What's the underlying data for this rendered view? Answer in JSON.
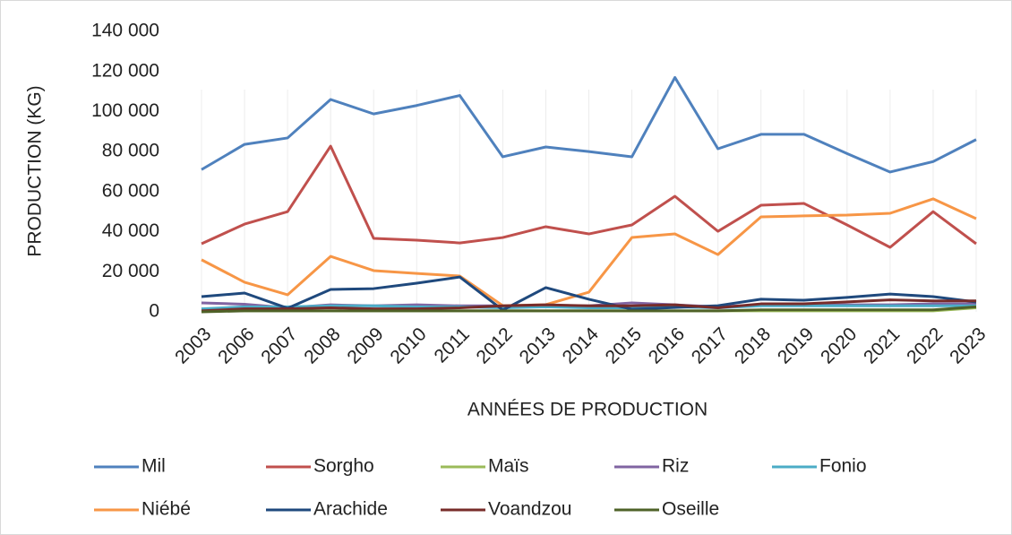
{
  "chart_data": {
    "type": "line",
    "ylabel": "PRODUCTION (KG)",
    "xlabel": "ANNÉES DE PRODUCTION",
    "categories": [
      "2003",
      "2006",
      "2007",
      "2008",
      "2009",
      "2010",
      "2011",
      "2012",
      "2013",
      "2014",
      "2015",
      "2016",
      "2017",
      "2018",
      "2019",
      "2020",
      "2021",
      "2022",
      "2023"
    ],
    "series": [
      {
        "name": "Mil",
        "color": "#4f81bd",
        "values": [
          71000,
          83600,
          86800,
          106000,
          98800,
          103000,
          108000,
          77400,
          82300,
          80000,
          77400,
          117000,
          81400,
          88600,
          88600,
          79000,
          69800,
          75000,
          86000
        ]
      },
      {
        "name": "Sorgho",
        "color": "#c0504d",
        "values": [
          34000,
          43800,
          50000,
          82700,
          36700,
          35800,
          34400,
          37100,
          42500,
          38900,
          43400,
          57700,
          40200,
          53200,
          54100,
          43400,
          32200,
          50000,
          34000
        ]
      },
      {
        "name": "Maïs",
        "color": "#9bbb59",
        "values": [
          500,
          500,
          500,
          500,
          500,
          500,
          500,
          500,
          500,
          500,
          500,
          500,
          500,
          500,
          500,
          500,
          500,
          500,
          2000
        ]
      },
      {
        "name": "Riz",
        "color": "#8064a2",
        "values": [
          4500,
          3800,
          2000,
          3500,
          3000,
          3500,
          3000,
          3000,
          3000,
          3000,
          4500,
          3500,
          2500,
          3500,
          3500,
          3500,
          3500,
          4000,
          4000
        ]
      },
      {
        "name": "Fonio",
        "color": "#4bacc6",
        "values": [
          1500,
          2500,
          2500,
          3000,
          3000,
          2500,
          2500,
          2000,
          2500,
          2000,
          2000,
          2500,
          2000,
          3000,
          3000,
          3000,
          3000,
          3000,
          3000
        ]
      },
      {
        "name": "Niébé",
        "color": "#f79646",
        "values": [
          26000,
          14800,
          8500,
          27700,
          20600,
          19200,
          17900,
          3100,
          3600,
          9800,
          37100,
          38900,
          28600,
          47400,
          47900,
          48300,
          49200,
          56400,
          46500
        ]
      },
      {
        "name": "Arachide",
        "color": "#1f497d",
        "values": [
          7600,
          9400,
          1800,
          11200,
          11600,
          14300,
          17400,
          900,
          12100,
          6300,
          1300,
          2200,
          3100,
          6300,
          5800,
          7200,
          8900,
          7600,
          4900
        ]
      },
      {
        "name": "Voandzou",
        "color": "#772c2a",
        "values": [
          500,
          1500,
          1500,
          2000,
          1500,
          1500,
          2000,
          3000,
          3500,
          3000,
          3000,
          3500,
          2000,
          4000,
          4000,
          5000,
          6000,
          5500,
          5500
        ]
      },
      {
        "name": "Oseille",
        "color": "#4f6228",
        "values": [
          0,
          500,
          500,
          500,
          500,
          500,
          500,
          500,
          500,
          500,
          500,
          500,
          500,
          1000,
          1000,
          1000,
          1000,
          1000,
          2500
        ]
      }
    ],
    "ylim": [
      0,
      140000
    ],
    "yticks": [
      0,
      {
        "value": 20000,
        "label": "20 000"
      },
      {
        "value": 40000,
        "label": "40 000"
      },
      {
        "value": 60000,
        "label": "60 000"
      },
      {
        "value": 80000,
        "label": "80 000"
      },
      {
        "value": 100000,
        "label": "100 000"
      },
      {
        "value": 120000,
        "label": "120 000"
      },
      {
        "value": 140000,
        "label": "140 000"
      }
    ],
    "grid": false,
    "legend": "bottom"
  }
}
